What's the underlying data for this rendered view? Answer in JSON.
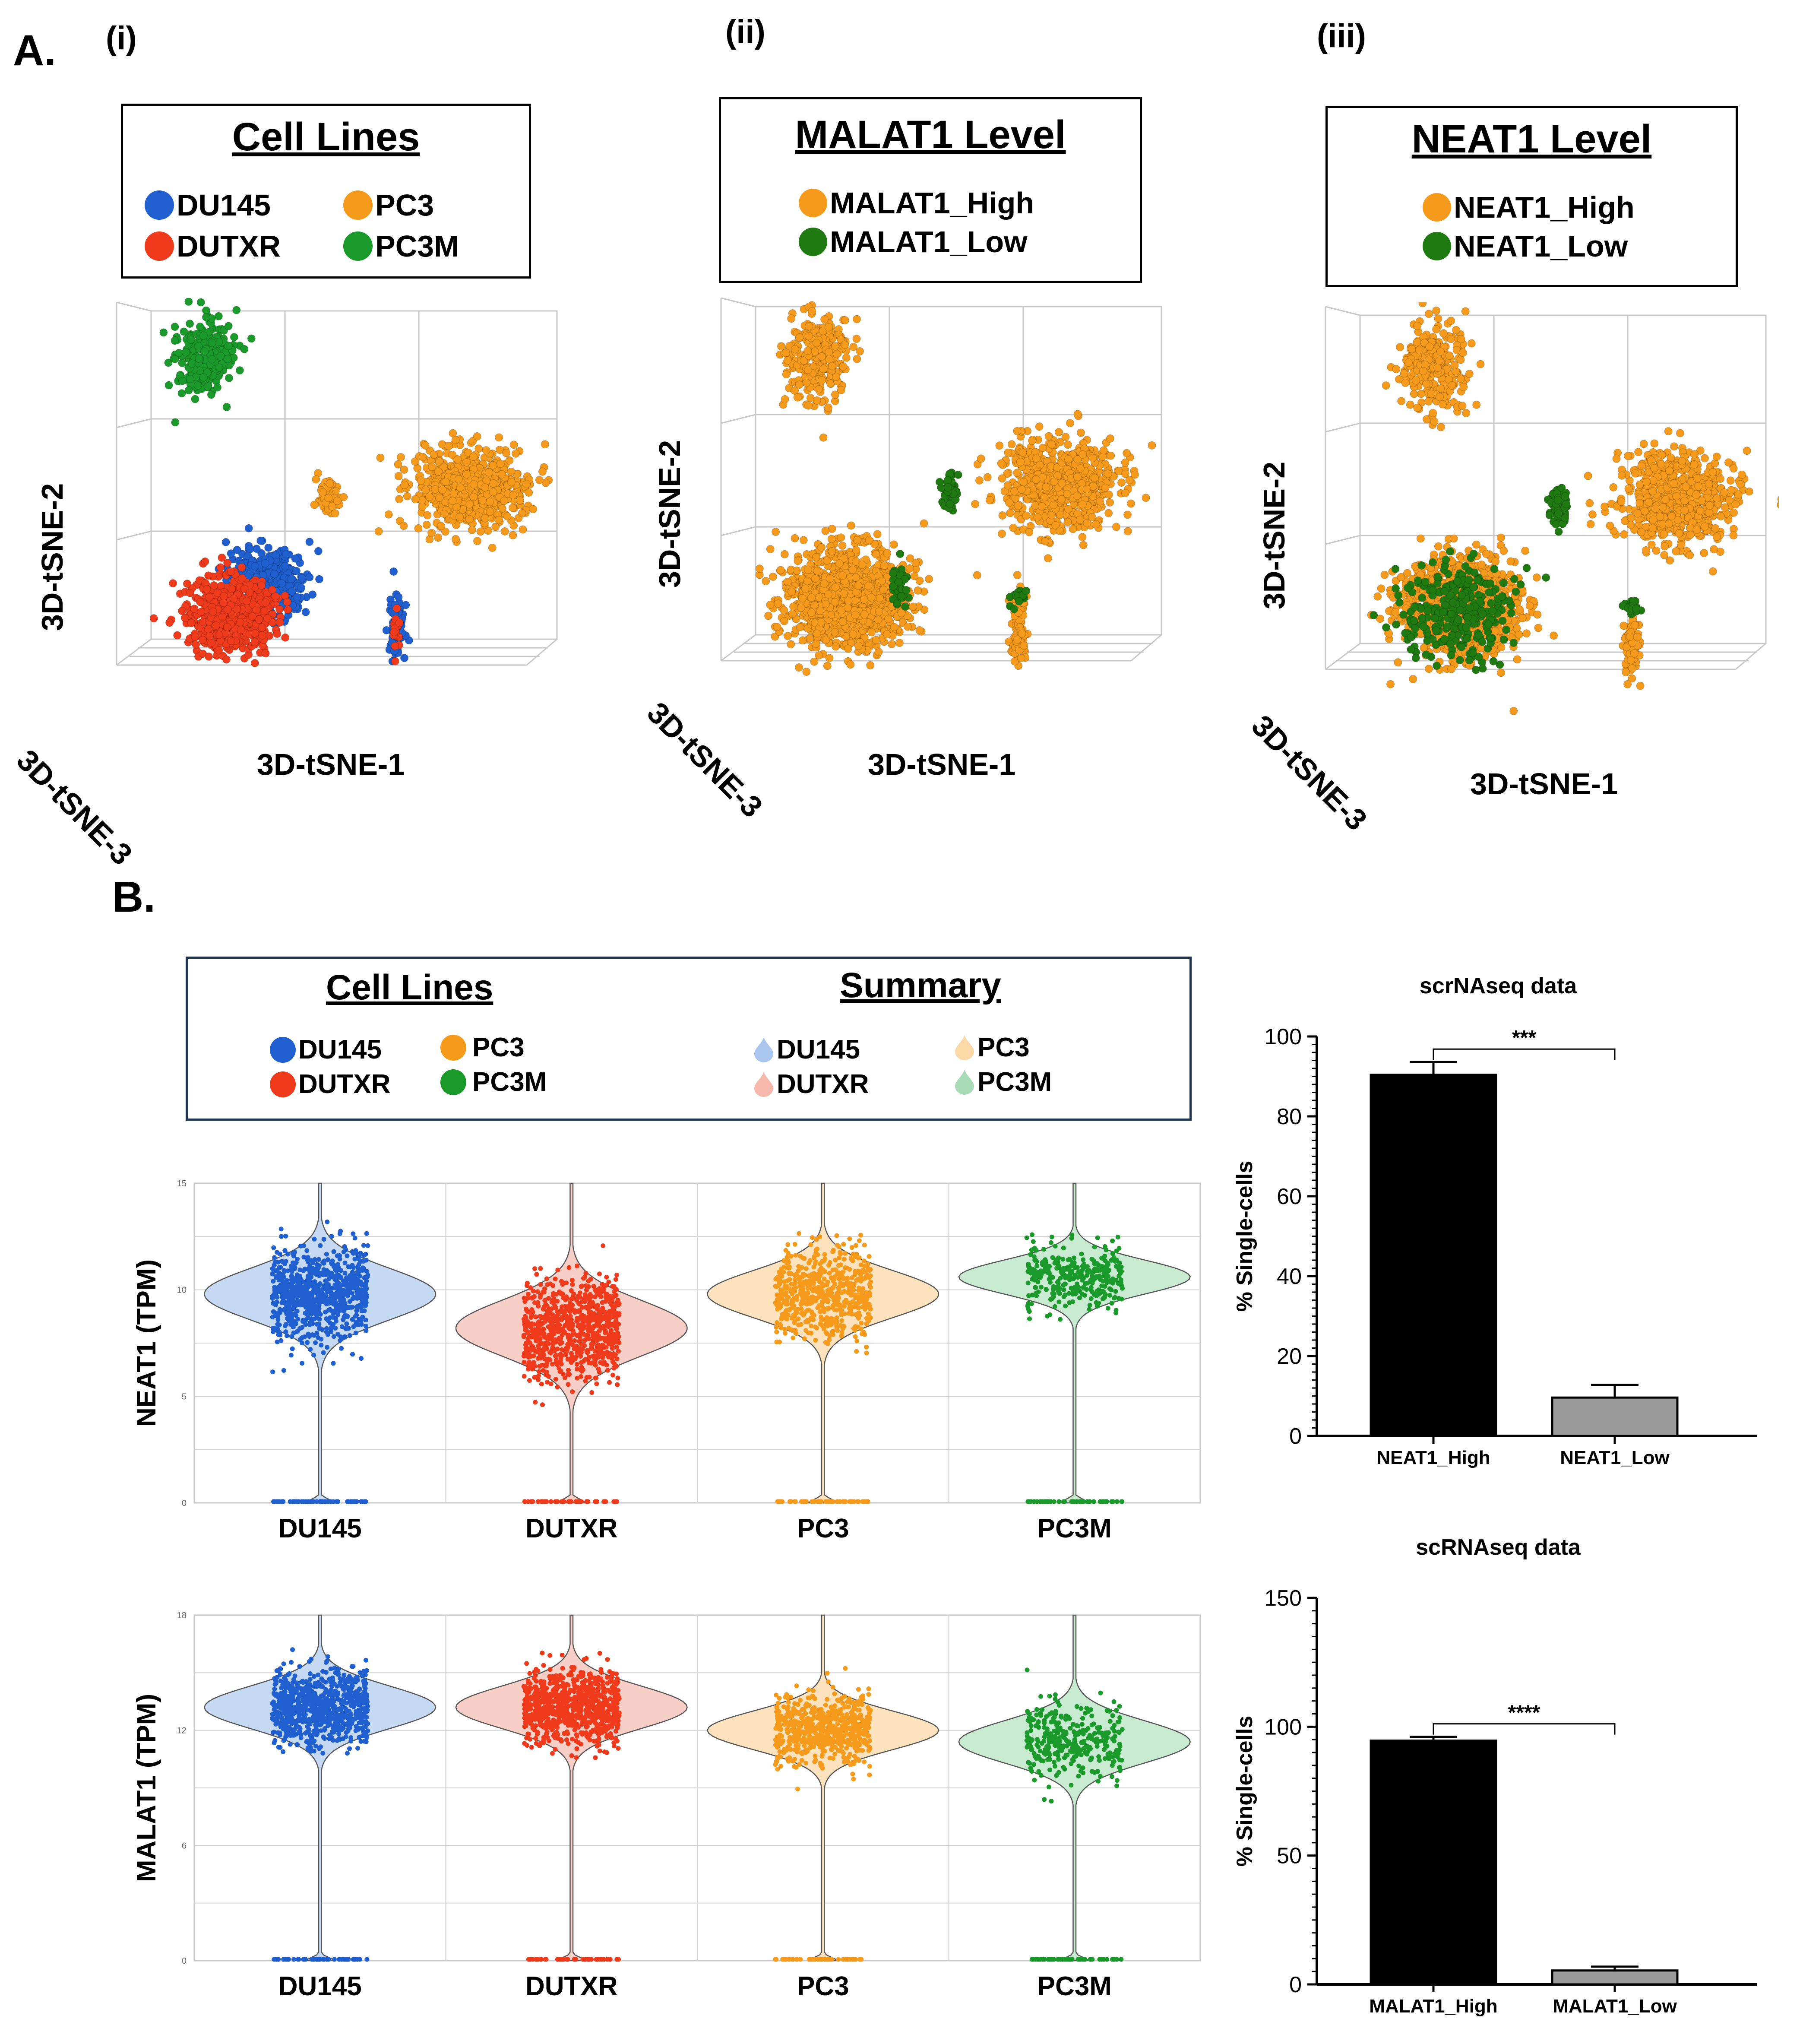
{
  "panel_a": {
    "letter": "A.",
    "sub": [
      "(i)",
      "(ii)",
      "(iii)"
    ],
    "plots": [
      {
        "legend_title": "Cell Lines",
        "legend": [
          "DU145",
          "PC3",
          "DUTXR",
          "PC3M"
        ],
        "xlabel": "3D-tSNE-1",
        "ylabel": "3D-tSNE-2",
        "zlabel": "3D-tSNE-3"
      },
      {
        "legend_title": "MALAT1 Level",
        "legend": [
          "MALAT1_High",
          "MALAT1_Low"
        ],
        "xlabel": "3D-tSNE-1",
        "ylabel": "3D-tSNE-2",
        "zlabel": "3D-tSNE-3"
      },
      {
        "legend_title": "NEAT1 Level",
        "legend": [
          "NEAT1_High",
          "NEAT1_Low"
        ],
        "xlabel": "3D-tSNE-1",
        "ylabel": "3D-tSNE-2",
        "zlabel": "3D-tSNE-3"
      }
    ]
  },
  "panel_b": {
    "letter": "B.",
    "legend": {
      "cell_title": "Cell Lines",
      "cell_items": [
        "DU145",
        "PC3",
        "DUTXR",
        "PC3M"
      ],
      "summary_title": "Summary",
      "summary_items": [
        "DU145",
        "PC3",
        "DUTXR",
        "PC3M"
      ]
    }
  },
  "colors": {
    "DU145": "#1f5fcf",
    "DUTXR": "#ef3b1c",
    "PC3": "#f59a1b",
    "PC3M": "#1a9a2a",
    "low_green": "#1f7a12",
    "DU145_light": "#c6d9f3",
    "DUTXR_light": "#f8cfc6",
    "PC3_light": "#fce3bd",
    "PC3M_light": "#c8ead0",
    "bar_high": "#000000",
    "bar_low": "#9a9a9a"
  },
  "chart_data": [
    {
      "type": "scatter",
      "title": "Cell Lines",
      "xlabel": "3D-tSNE-1",
      "ylabel": "3D-tSNE-2",
      "zlabel": "3D-tSNE-3",
      "series": [
        {
          "name": "DU145",
          "clusters": [
            {
              "cx": 0.34,
              "cy": 0.63,
              "rx": 0.09,
              "ry": 0.08,
              "n": 500
            },
            {
              "cx": 0.62,
              "cy": 0.73,
              "rx": 0.02,
              "ry": 0.07,
              "n": 90
            }
          ]
        },
        {
          "name": "DUTXR",
          "clusters": [
            {
              "cx": 0.26,
              "cy": 0.7,
              "rx": 0.1,
              "ry": 0.09,
              "n": 650
            },
            {
              "cx": 0.62,
              "cy": 0.74,
              "rx": 0.01,
              "ry": 0.05,
              "n": 20
            }
          ]
        },
        {
          "name": "PC3",
          "clusters": [
            {
              "cx": 0.78,
              "cy": 0.42,
              "rx": 0.13,
              "ry": 0.1,
              "n": 650
            },
            {
              "cx": 0.47,
              "cy": 0.44,
              "rx": 0.03,
              "ry": 0.05,
              "n": 60
            }
          ]
        },
        {
          "name": "PC3M",
          "clusters": [
            {
              "cx": 0.2,
              "cy": 0.13,
              "rx": 0.07,
              "ry": 0.09,
              "n": 260
            }
          ]
        }
      ]
    },
    {
      "type": "scatter",
      "title": "MALAT1 Level",
      "xlabel": "3D-tSNE-1",
      "ylabel": "3D-tSNE-2",
      "zlabel": "3D-tSNE-3",
      "series": [
        {
          "name": "MALAT1_High",
          "clusters": [
            {
              "cx": 0.22,
              "cy": 0.14,
              "rx": 0.08,
              "ry": 0.11,
              "n": 260
            },
            {
              "cx": 0.75,
              "cy": 0.42,
              "rx": 0.14,
              "ry": 0.11,
              "n": 650
            },
            {
              "cx": 0.28,
              "cy": 0.67,
              "rx": 0.15,
              "ry": 0.12,
              "n": 1100
            },
            {
              "cx": 0.66,
              "cy": 0.74,
              "rx": 0.02,
              "ry": 0.08,
              "n": 90
            }
          ]
        },
        {
          "name": "MALAT1_Low",
          "clusters": [
            {
              "cx": 0.51,
              "cy": 0.44,
              "rx": 0.02,
              "ry": 0.05,
              "n": 60
            },
            {
              "cx": 0.66,
              "cy": 0.67,
              "rx": 0.02,
              "ry": 0.02,
              "n": 20
            },
            {
              "cx": 0.4,
              "cy": 0.65,
              "rx": 0.02,
              "ry": 0.05,
              "n": 40
            }
          ]
        }
      ]
    },
    {
      "type": "scatter",
      "title": "NEAT1 Level",
      "xlabel": "3D-tSNE-1",
      "ylabel": "3D-tSNE-2",
      "zlabel": "3D-tSNE-3",
      "series": [
        {
          "name": "NEAT1_High",
          "clusters": [
            {
              "cx": 0.25,
              "cy": 0.14,
              "rx": 0.08,
              "ry": 0.11,
              "n": 260
            },
            {
              "cx": 0.78,
              "cy": 0.43,
              "rx": 0.14,
              "ry": 0.11,
              "n": 650
            },
            {
              "cx": 0.3,
              "cy": 0.67,
              "rx": 0.14,
              "ry": 0.12,
              "n": 900
            },
            {
              "cx": 0.68,
              "cy": 0.76,
              "rx": 0.02,
              "ry": 0.08,
              "n": 70
            }
          ]
        },
        {
          "name": "NEAT1_Low",
          "clusters": [
            {
              "cx": 0.52,
              "cy": 0.45,
              "rx": 0.02,
              "ry": 0.05,
              "n": 70
            },
            {
              "cx": 0.3,
              "cy": 0.68,
              "rx": 0.14,
              "ry": 0.12,
              "n": 300
            },
            {
              "cx": 0.68,
              "cy": 0.67,
              "rx": 0.02,
              "ry": 0.02,
              "n": 25
            }
          ]
        }
      ]
    },
    {
      "type": "violin",
      "ylabel": "NEAT1 (TPM)",
      "categories": [
        "DU145",
        "DUTXR",
        "PC3",
        "PC3M"
      ],
      "ylim": [
        0,
        15
      ],
      "yticks": [
        0,
        5,
        10,
        15
      ],
      "medians": [
        9.8,
        8.2,
        9.8,
        10.6
      ],
      "spreads": [
        1.2,
        1.3,
        1.1,
        0.8
      ],
      "point_counts": [
        800,
        800,
        600,
        330
      ]
    },
    {
      "type": "violin",
      "ylabel": "MALAT1 (TPM)",
      "categories": [
        "DU145",
        "DUTXR",
        "PC3",
        "PC3M"
      ],
      "ylim": [
        0,
        18
      ],
      "yticks": [
        0,
        6,
        12,
        18
      ],
      "medians": [
        13.2,
        13.2,
        12.0,
        11.4
      ],
      "spreads": [
        1.1,
        1.1,
        1.0,
        1.1
      ],
      "point_counts": [
        800,
        800,
        600,
        330
      ]
    },
    {
      "type": "bar",
      "title": "scrNAseq data",
      "categories": [
        "NEAT1_High",
        "NEAT1_Low"
      ],
      "values": [
        90.4,
        9.6
      ],
      "errors": [
        3.2,
        3.2
      ],
      "ylabel": "% Single-cells",
      "ylim": [
        0,
        100
      ],
      "yticks": [
        0,
        20,
        40,
        60,
        80,
        100
      ],
      "significance": "***"
    },
    {
      "type": "bar",
      "title": "scRNAseq data",
      "categories": [
        "MALAT1_High",
        "MALAT1_Low"
      ],
      "values": [
        94.6,
        5.4
      ],
      "errors": [
        1.5,
        1.5
      ],
      "ylabel": "% Single-cells",
      "ylim": [
        0,
        150
      ],
      "yticks": [
        0,
        50,
        100,
        150
      ],
      "significance": "****"
    }
  ]
}
